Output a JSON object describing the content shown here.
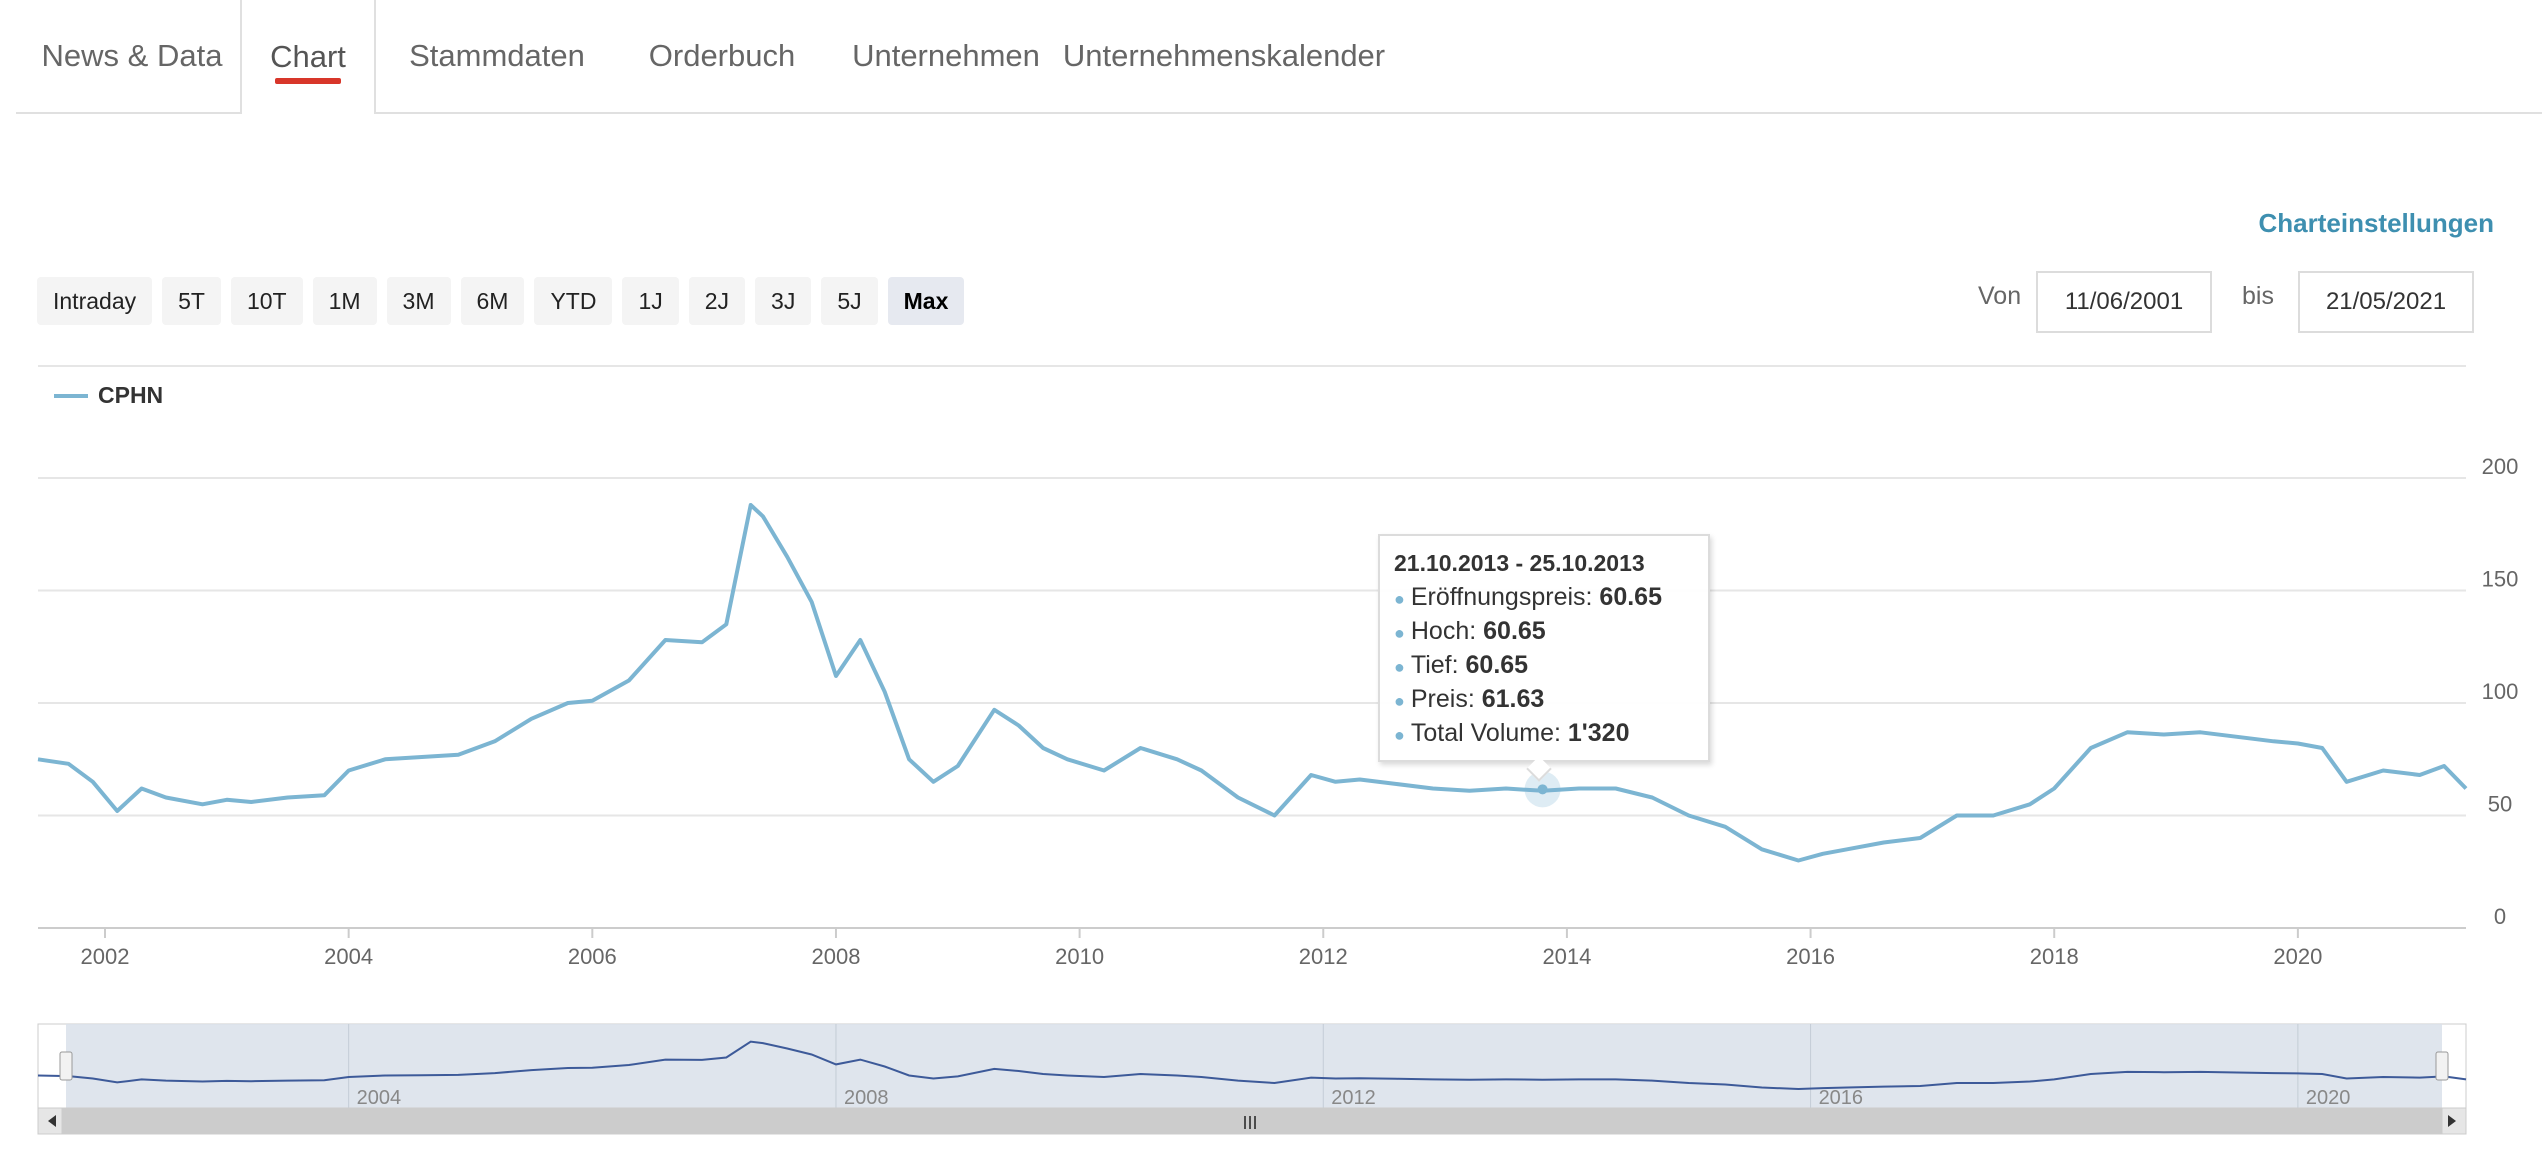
{
  "tabs": [
    {
      "label": "News & Data",
      "active": false
    },
    {
      "label": "Chart",
      "active": true
    },
    {
      "label": "Stammdaten",
      "active": false
    },
    {
      "label": "Orderbuch",
      "active": false
    },
    {
      "label": "Unternehmen",
      "active": false
    },
    {
      "label": "Unternehmenskalender",
      "active": false
    }
  ],
  "settings_link": "Charteinstellungen",
  "ranges": [
    "Intraday",
    "5T",
    "10T",
    "1M",
    "3M",
    "6M",
    "YTD",
    "1J",
    "2J",
    "3J",
    "5J",
    "Max"
  ],
  "selected_range": "Max",
  "date_range": {
    "from_label": "Von",
    "from": "11/06/2001",
    "to_label": "bis",
    "to": "21/05/2021"
  },
  "tooltip": {
    "title": "21.10.2013 - 25.10.2013",
    "rows": [
      {
        "label": "Eröffnungspreis: ",
        "value": "60.65"
      },
      {
        "label": "Hoch: ",
        "value": "60.65"
      },
      {
        "label": "Tief: ",
        "value": "60.65"
      },
      {
        "label": "Preis: ",
        "value": "61.63"
      },
      {
        "label": "Total Volume: ",
        "value": "1'320"
      }
    ]
  },
  "navigator": {
    "x_ticks": [
      2004,
      2008,
      2012,
      2016,
      2020
    ],
    "scroll_handle_glyph": "III"
  },
  "colors": {
    "series": "#7cb5d2",
    "navigator_series": "#3d5a99",
    "tab_underline": "#d8362a",
    "link": "#3e8fb0"
  },
  "chart_data": {
    "type": "line",
    "title": "",
    "xlabel": "",
    "ylabel": "",
    "series": [
      {
        "name": "CPHN",
        "x": [
          2001.45,
          2001.7,
          2001.9,
          2002.1,
          2002.3,
          2002.5,
          2002.8,
          2003.0,
          2003.2,
          2003.5,
          2003.8,
          2004.0,
          2004.3,
          2004.6,
          2004.9,
          2005.2,
          2005.5,
          2005.8,
          2006.0,
          2006.3,
          2006.6,
          2006.9,
          2007.1,
          2007.3,
          2007.4,
          2007.6,
          2007.8,
          2008.0,
          2008.2,
          2008.4,
          2008.6,
          2008.8,
          2009.0,
          2009.3,
          2009.5,
          2009.7,
          2009.9,
          2010.2,
          2010.5,
          2010.8,
          2011.0,
          2011.3,
          2011.6,
          2011.9,
          2012.1,
          2012.3,
          2012.6,
          2012.9,
          2013.2,
          2013.5,
          2013.8,
          2014.1,
          2014.4,
          2014.7,
          2015.0,
          2015.3,
          2015.6,
          2015.9,
          2016.1,
          2016.3,
          2016.6,
          2016.9,
          2017.2,
          2017.5,
          2017.8,
          2018.0,
          2018.3,
          2018.6,
          2018.9,
          2019.2,
          2019.5,
          2019.8,
          2020.0,
          2020.2,
          2020.4,
          2020.7,
          2021.0,
          2021.2,
          2021.38
        ],
        "values": [
          75,
          73,
          65,
          52,
          62,
          58,
          55,
          57,
          56,
          58,
          59,
          70,
          75,
          76,
          77,
          83,
          93,
          100,
          101,
          110,
          128,
          127,
          135,
          188,
          183,
          165,
          145,
          112,
          128,
          105,
          75,
          65,
          72,
          97,
          90,
          80,
          75,
          70,
          80,
          75,
          70,
          58,
          50,
          68,
          65,
          66,
          64,
          62,
          61,
          62,
          61,
          62,
          62,
          58,
          50,
          45,
          35,
          30,
          33,
          35,
          38,
          40,
          50,
          50,
          55,
          62,
          80,
          87,
          86,
          87,
          85,
          83,
          82,
          80,
          65,
          70,
          68,
          72,
          62
        ]
      }
    ],
    "x_ticks": [
      2002,
      2004,
      2006,
      2008,
      2010,
      2012,
      2014,
      2016,
      2018,
      2020
    ],
    "y_ticks": [
      0,
      50,
      100,
      150,
      200
    ],
    "xlim": [
      2001.45,
      2021.38
    ],
    "ylim": [
      0,
      200
    ],
    "grid": true,
    "legend": "top-left"
  }
}
